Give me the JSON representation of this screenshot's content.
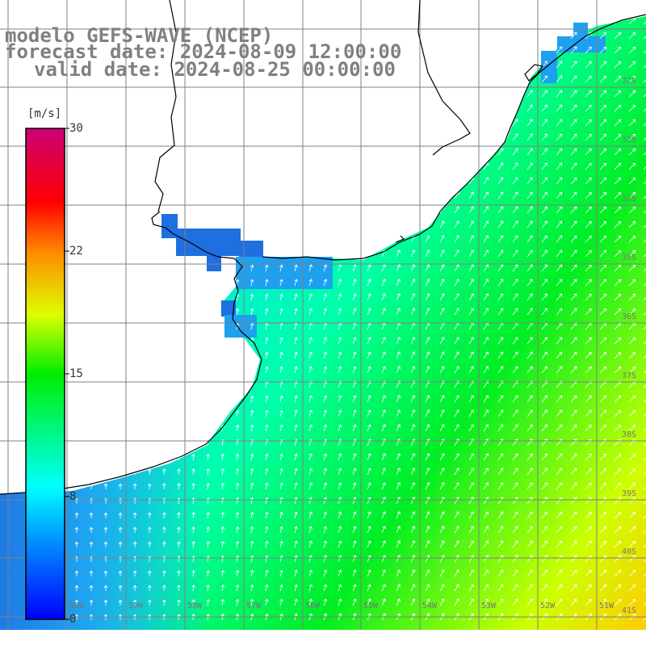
{
  "title": {
    "line1": "modelo GEFS-WAVE (NCEP)",
    "line2": "forecast date: 2024-08-09 12:00:00",
    "line3": "valid date: 2024-08-25 00:00:00"
  },
  "colorbar": {
    "unit": "[m/s]",
    "ticks": [
      {
        "label": "30",
        "value": 30
      },
      {
        "label": "22",
        "value": 22
      },
      {
        "label": "15",
        "value": 15
      },
      {
        "label": "8",
        "value": 8
      },
      {
        "label": "0",
        "value": 0
      }
    ],
    "range": [
      0,
      30
    ]
  },
  "grid_labels": {
    "latitudes": [
      "32S",
      "33S",
      "34S",
      "35S",
      "36S",
      "37S",
      "38S",
      "39S",
      "40S",
      "41S"
    ],
    "longitudes": [
      "60W",
      "59W",
      "58W",
      "57W",
      "56W",
      "55W",
      "54W",
      "53W",
      "52W",
      "51W"
    ]
  },
  "colors": {
    "land": "#ffffff",
    "coastline": "#000000",
    "grid": "#808080",
    "arrow": "#ffffff",
    "title": "#808080"
  }
}
